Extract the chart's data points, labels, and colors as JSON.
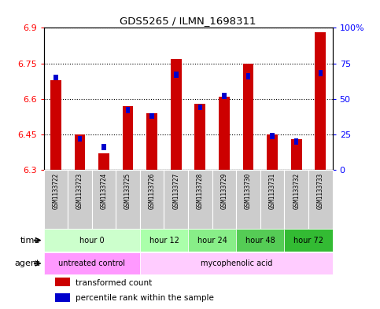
{
  "title": "GDS5265 / ILMN_1698311",
  "samples": [
    "GSM1133722",
    "GSM1133723",
    "GSM1133724",
    "GSM1133725",
    "GSM1133726",
    "GSM1133727",
    "GSM1133728",
    "GSM1133729",
    "GSM1133730",
    "GSM1133731",
    "GSM1133732",
    "GSM1133733"
  ],
  "red_values": [
    6.68,
    6.45,
    6.37,
    6.57,
    6.54,
    6.77,
    6.58,
    6.61,
    6.75,
    6.45,
    6.43,
    6.88
  ],
  "blue_values_pct": [
    65,
    22,
    16,
    42,
    38,
    67,
    44,
    52,
    66,
    24,
    20,
    68
  ],
  "ylim_left": [
    6.3,
    6.9
  ],
  "ylim_right": [
    0,
    100
  ],
  "yticks_left": [
    6.3,
    6.45,
    6.6,
    6.75,
    6.9
  ],
  "ytick_labels_left": [
    "6.3",
    "6.45",
    "6.6",
    "6.75",
    "6.9"
  ],
  "yticks_right": [
    0,
    25,
    50,
    75,
    100
  ],
  "ytick_labels_right": [
    "0",
    "25",
    "50",
    "75",
    "100%"
  ],
  "bar_bottom": 6.3,
  "blue_marker_size": 0.025,
  "time_groups": [
    {
      "label": "hour 0",
      "span": [
        0,
        4
      ],
      "color": "#ccffcc"
    },
    {
      "label": "hour 12",
      "span": [
        4,
        6
      ],
      "color": "#aaffaa"
    },
    {
      "label": "hour 24",
      "span": [
        6,
        8
      ],
      "color": "#88ee88"
    },
    {
      "label": "hour 48",
      "span": [
        8,
        10
      ],
      "color": "#55cc55"
    },
    {
      "label": "hour 72",
      "span": [
        10,
        12
      ],
      "color": "#33bb33"
    }
  ],
  "agent_groups": [
    {
      "label": "untreated control",
      "span": [
        0,
        4
      ],
      "color": "#ff99ff"
    },
    {
      "label": "mycophenolic acid",
      "span": [
        4,
        12
      ],
      "color": "#ffccff"
    }
  ],
  "legend_items": [
    {
      "color": "#cc0000",
      "label": "transformed count"
    },
    {
      "color": "#0000cc",
      "label": "percentile rank within the sample"
    }
  ],
  "bar_color": "#cc0000",
  "blue_color": "#0000cc",
  "bar_width": 0.45,
  "sample_bg_color": "#cccccc",
  "plot_bg": "#ffffff"
}
